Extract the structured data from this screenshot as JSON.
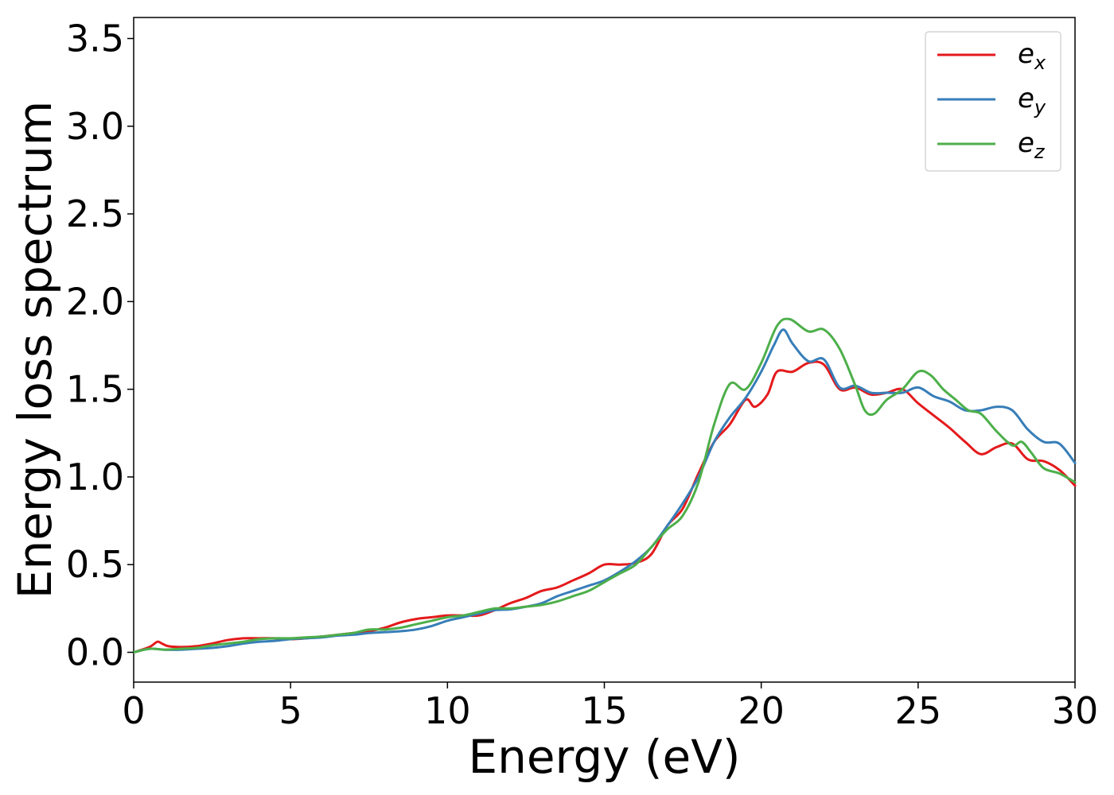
{
  "chart_data": {
    "type": "line",
    "xlabel": "Energy (eV)",
    "ylabel": "Energy loss spectrum",
    "xlim": [
      0,
      30
    ],
    "ylim": [
      -0.17,
      3.62
    ],
    "xticks": [
      "0",
      "5",
      "10",
      "15",
      "20",
      "25",
      "30"
    ],
    "yticks": [
      "0.0",
      "0.5",
      "1.0",
      "1.5",
      "2.0",
      "2.5",
      "3.0",
      "3.5"
    ],
    "grid": false,
    "legend_position": "top-right",
    "series": [
      {
        "name": "e",
        "subscript": "x",
        "color": "#e41a1c",
        "x": [
          0,
          0.5,
          0.75,
          0.9,
          1.1,
          1.5,
          2.0,
          2.5,
          3.0,
          3.5,
          4.0,
          4.5,
          5.0,
          5.5,
          6.0,
          6.5,
          7.0,
          7.5,
          8.0,
          8.5,
          9.0,
          9.5,
          10.0,
          10.5,
          11.0,
          11.5,
          12.0,
          12.5,
          13.0,
          13.5,
          14.0,
          14.5,
          15.0,
          15.5,
          16.0,
          16.5,
          17.0,
          17.5,
          18.0,
          18.5,
          19.0,
          19.5,
          19.8,
          20.2,
          20.5,
          21.0,
          21.5,
          22.0,
          22.5,
          23.0,
          23.5,
          24.0,
          24.5,
          25.0,
          25.5,
          26.0,
          26.5,
          27.0,
          27.5,
          28.0,
          28.5,
          29.0,
          29.5,
          30.0
        ],
        "y": [
          0.0,
          0.03,
          0.06,
          0.05,
          0.035,
          0.03,
          0.035,
          0.05,
          0.07,
          0.08,
          0.08,
          0.08,
          0.075,
          0.08,
          0.09,
          0.1,
          0.11,
          0.12,
          0.14,
          0.17,
          0.19,
          0.2,
          0.21,
          0.21,
          0.21,
          0.24,
          0.28,
          0.31,
          0.35,
          0.37,
          0.41,
          0.45,
          0.5,
          0.5,
          0.51,
          0.56,
          0.72,
          0.82,
          1.02,
          1.2,
          1.3,
          1.44,
          1.4,
          1.47,
          1.6,
          1.6,
          1.65,
          1.64,
          1.5,
          1.51,
          1.47,
          1.48,
          1.5,
          1.42,
          1.35,
          1.28,
          1.2,
          1.13,
          1.17,
          1.19,
          1.1,
          1.09,
          1.04,
          0.95
        ]
      },
      {
        "name": "e",
        "subscript": "y",
        "color": "#377eb8",
        "x": [
          0,
          0.5,
          1.0,
          1.5,
          2.0,
          2.5,
          3.0,
          3.5,
          4.0,
          4.5,
          5.0,
          5.5,
          6.0,
          6.5,
          7.0,
          7.5,
          8.0,
          8.5,
          9.0,
          9.5,
          10.0,
          10.5,
          11.0,
          11.5,
          12.0,
          12.5,
          13.0,
          13.5,
          14.0,
          14.5,
          15.0,
          15.5,
          16.0,
          16.5,
          17.0,
          17.5,
          18.0,
          18.5,
          19.0,
          19.5,
          20.0,
          20.4,
          20.7,
          21.0,
          21.5,
          22.0,
          22.5,
          23.0,
          23.5,
          24.0,
          24.5,
          25.0,
          25.5,
          26.0,
          26.5,
          27.0,
          27.5,
          28.0,
          28.5,
          29.0,
          29.5,
          30.0
        ],
        "y": [
          0.0,
          0.02,
          0.015,
          0.015,
          0.02,
          0.025,
          0.035,
          0.05,
          0.06,
          0.065,
          0.075,
          0.08,
          0.085,
          0.095,
          0.1,
          0.11,
          0.115,
          0.12,
          0.13,
          0.15,
          0.18,
          0.2,
          0.22,
          0.24,
          0.245,
          0.26,
          0.28,
          0.32,
          0.35,
          0.38,
          0.41,
          0.46,
          0.52,
          0.6,
          0.72,
          0.85,
          1.0,
          1.2,
          1.34,
          1.45,
          1.6,
          1.75,
          1.84,
          1.76,
          1.66,
          1.67,
          1.51,
          1.52,
          1.48,
          1.48,
          1.48,
          1.51,
          1.46,
          1.43,
          1.38,
          1.38,
          1.4,
          1.38,
          1.27,
          1.2,
          1.19,
          1.08
        ]
      },
      {
        "name": "e",
        "subscript": "z",
        "color": "#4daf4a",
        "x": [
          0,
          0.5,
          1.0,
          1.5,
          2.0,
          2.5,
          3.0,
          3.5,
          4.0,
          4.5,
          5.0,
          5.5,
          6.0,
          6.5,
          7.0,
          7.5,
          8.0,
          8.5,
          9.0,
          9.5,
          10.0,
          10.5,
          11.0,
          11.5,
          12.0,
          12.5,
          13.0,
          13.5,
          14.0,
          14.5,
          15.0,
          15.5,
          16.0,
          16.5,
          17.0,
          17.5,
          18.0,
          18.5,
          19.0,
          19.5,
          20.0,
          20.5,
          20.9,
          21.5,
          22.0,
          22.5,
          23.0,
          23.3,
          23.6,
          24.0,
          24.5,
          25.0,
          25.4,
          25.8,
          26.2,
          26.6,
          27.0,
          27.5,
          28.0,
          28.3,
          28.6,
          29.0,
          29.5,
          30.0
        ],
        "y": [
          0.0,
          0.02,
          0.015,
          0.02,
          0.025,
          0.04,
          0.05,
          0.06,
          0.075,
          0.08,
          0.08,
          0.085,
          0.09,
          0.1,
          0.11,
          0.13,
          0.13,
          0.14,
          0.16,
          0.18,
          0.2,
          0.21,
          0.23,
          0.25,
          0.25,
          0.26,
          0.27,
          0.29,
          0.32,
          0.35,
          0.4,
          0.45,
          0.5,
          0.6,
          0.7,
          0.78,
          0.97,
          1.3,
          1.53,
          1.5,
          1.65,
          1.86,
          1.9,
          1.83,
          1.84,
          1.73,
          1.52,
          1.38,
          1.36,
          1.44,
          1.5,
          1.6,
          1.58,
          1.5,
          1.44,
          1.38,
          1.36,
          1.26,
          1.18,
          1.2,
          1.14,
          1.05,
          1.02,
          0.97
        ]
      }
    ]
  }
}
